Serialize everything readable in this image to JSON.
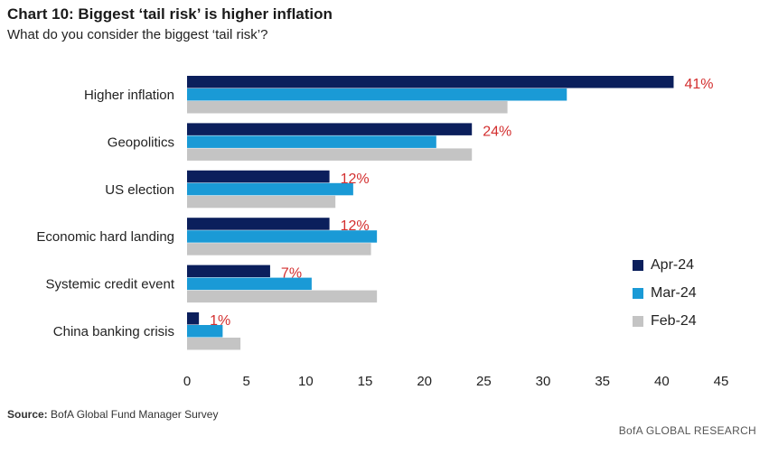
{
  "title": "Chart 10: Biggest ‘tail risk’ is higher inflation",
  "subtitle": "What do you consider the biggest ‘tail risk’?",
  "source_label": "Source:",
  "source_text": "BofA Global Fund Manager Survey",
  "brand": "BofA GLOBAL RESEARCH",
  "colors": {
    "apr": "#0b1f5c",
    "mar": "#1a9ad6",
    "feb": "#c4c4c4",
    "label_red": "#d32f2f"
  },
  "chart_data": {
    "type": "bar",
    "orientation": "horizontal",
    "categories": [
      "Higher inflation",
      "Geopolitics",
      "US election",
      "Economic hard landing",
      "Systemic credit event",
      "China banking crisis"
    ],
    "series": [
      {
        "name": "Apr-24",
        "values": [
          41,
          24,
          12,
          12,
          7,
          1
        ]
      },
      {
        "name": "Mar-24",
        "values": [
          32,
          21,
          14,
          16,
          10.5,
          3
        ]
      },
      {
        "name": "Feb-24",
        "values": [
          27,
          24,
          12.5,
          15.5,
          16,
          4.5
        ]
      }
    ],
    "data_labels": [
      "41%",
      "24%",
      "12%",
      "12%",
      "7%",
      "1%"
    ],
    "xlim": [
      0,
      45
    ],
    "xticks": [
      0,
      5,
      10,
      15,
      20,
      25,
      30,
      35,
      40,
      45
    ],
    "legend_position": "right"
  }
}
